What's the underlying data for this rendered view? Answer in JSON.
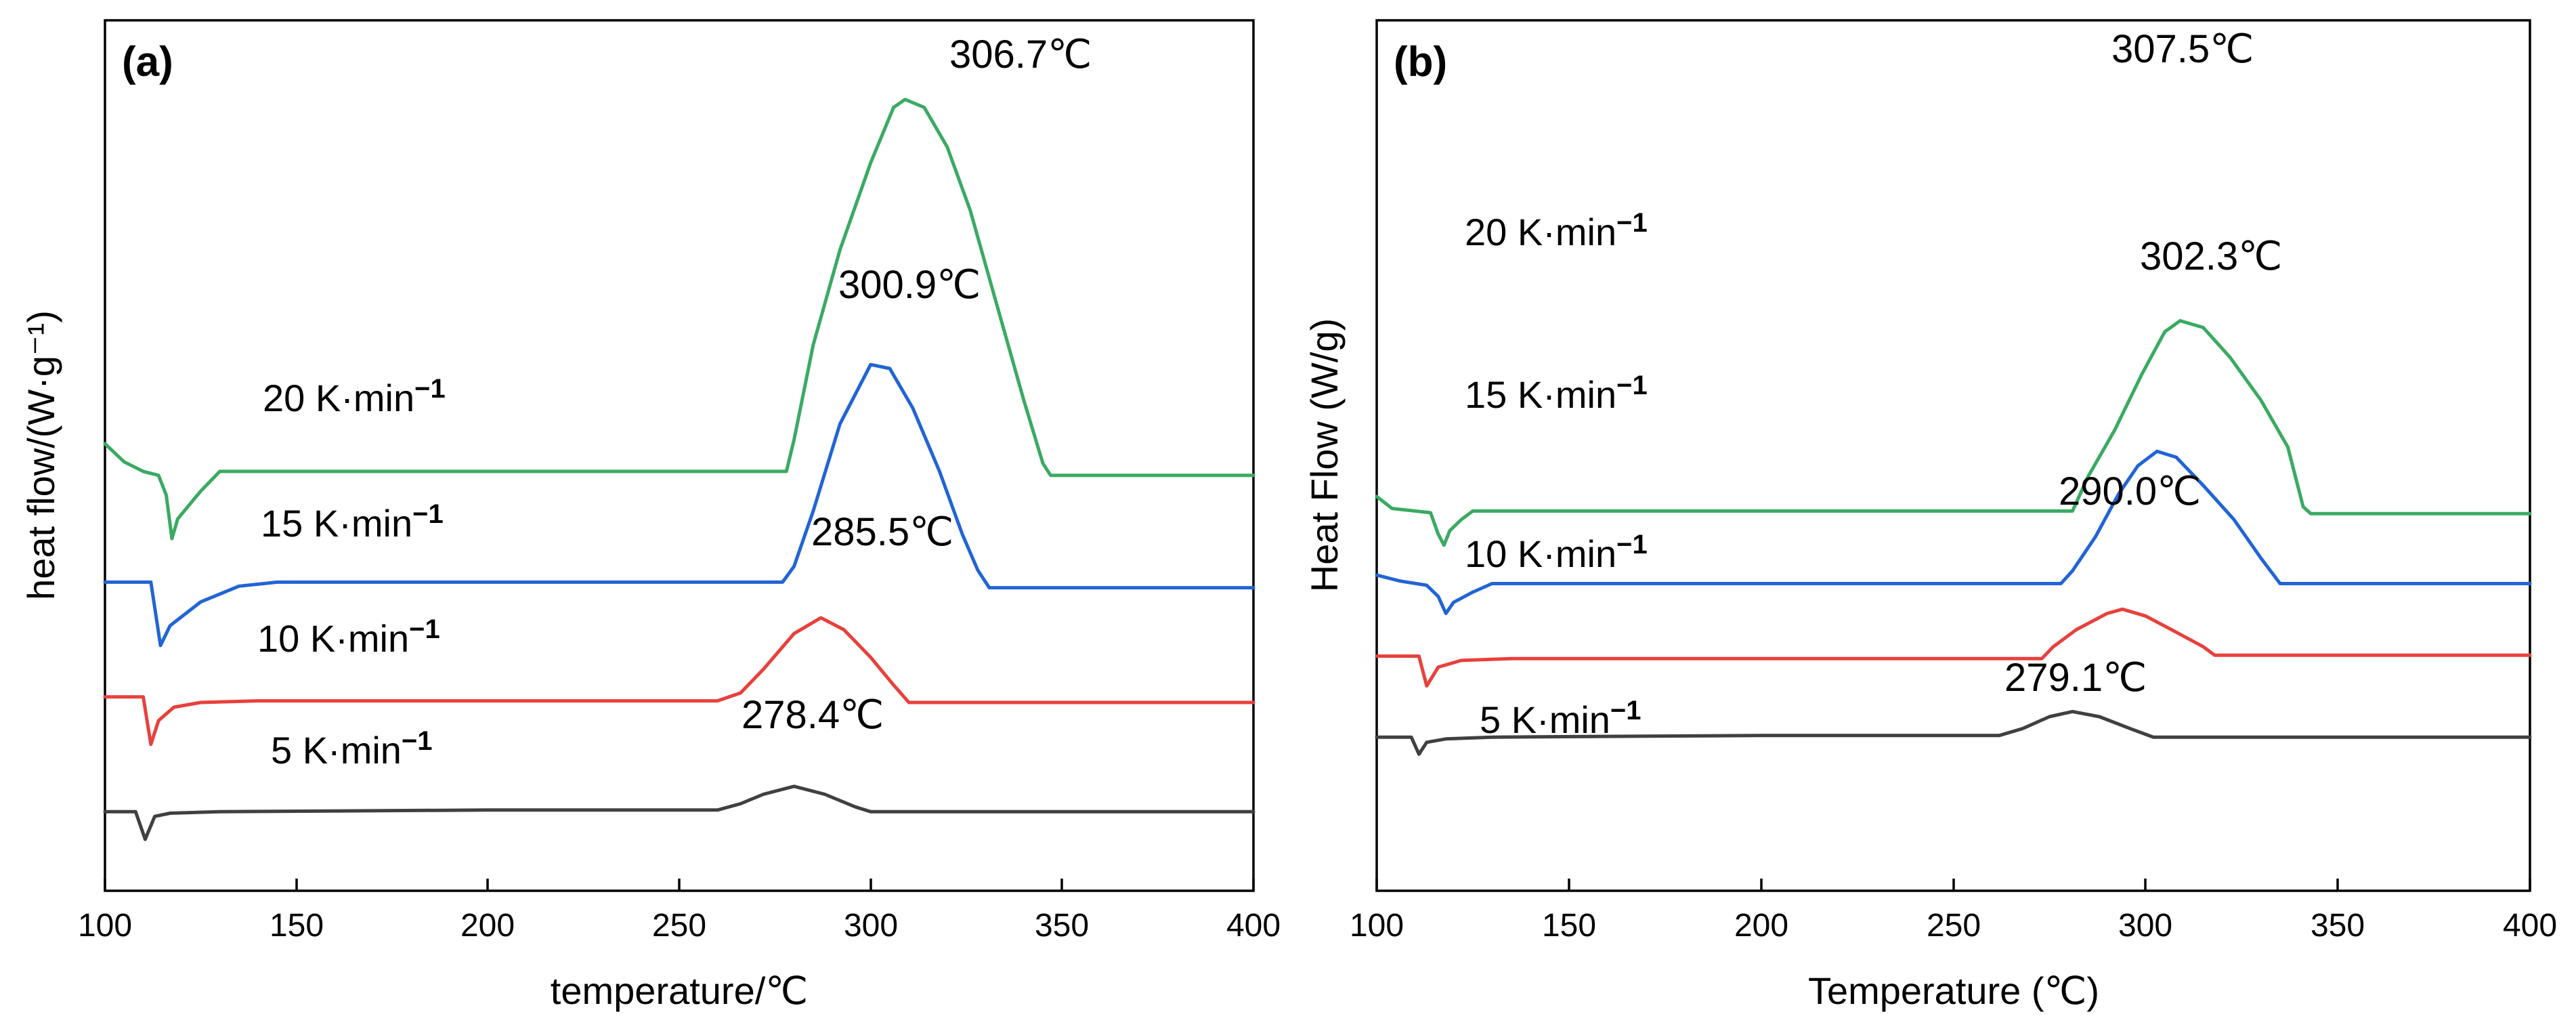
{
  "chart_data": [
    {
      "type": "line",
      "panel_label": "(a)",
      "xlabel": "temperature/℃",
      "ylabel": "heat flow/(W·g⁻¹)",
      "xlim": [
        100,
        400
      ],
      "x_ticks": [
        "100",
        "150",
        "200",
        "250",
        "300",
        "350",
        "400"
      ],
      "ylim": [
        -1,
        10
      ],
      "y_ticks": [],
      "series": [
        {
          "name": "5 K·min⁻¹",
          "name_base": "5 K·min",
          "name_exp": "−1",
          "color": "#404040",
          "peak_label": "278.4℃",
          "points": [
            [
              100,
              0
            ],
            [
              108,
              0
            ],
            [
              110.5,
              -0.35
            ],
            [
              113,
              -0.06
            ],
            [
              117,
              -0.02
            ],
            [
              130,
              0
            ],
            [
              200,
              0.02
            ],
            [
              260,
              0.02
            ],
            [
              266,
              0.1
            ],
            [
              272,
              0.22
            ],
            [
              280,
              0.32
            ],
            [
              288,
              0.22
            ],
            [
              296,
              0.06
            ],
            [
              300,
              0
            ],
            [
              400,
              0
            ]
          ]
        },
        {
          "name": "10 K·min⁻¹",
          "name_base": "10 K·min",
          "name_exp": "−1",
          "color": "#e8403c",
          "peak_label": "285.5℃",
          "points": [
            [
              100,
              1.45
            ],
            [
              110,
              1.45
            ],
            [
              112,
              0.85
            ],
            [
              114,
              1.15
            ],
            [
              118,
              1.32
            ],
            [
              125,
              1.38
            ],
            [
              140,
              1.4
            ],
            [
              200,
              1.4
            ],
            [
              260,
              1.4
            ],
            [
              266,
              1.5
            ],
            [
              272,
              1.8
            ],
            [
              280,
              2.25
            ],
            [
              287,
              2.45
            ],
            [
              293,
              2.3
            ],
            [
              300,
              1.95
            ],
            [
              306,
              1.6
            ],
            [
              310,
              1.38
            ],
            [
              400,
              1.38
            ]
          ]
        },
        {
          "name": "15 K·min⁻¹",
          "name_base": "15 K·min",
          "name_exp": "−1",
          "color": "#2264d6",
          "peak_label": "300.9℃",
          "points": [
            [
              100,
              2.9
            ],
            [
              112,
              2.9
            ],
            [
              114.5,
              2.1
            ],
            [
              117,
              2.35
            ],
            [
              125,
              2.65
            ],
            [
              135,
              2.85
            ],
            [
              145,
              2.9
            ],
            [
              200,
              2.9
            ],
            [
              260,
              2.9
            ],
            [
              277,
              2.9
            ],
            [
              280,
              3.1
            ],
            [
              285,
              3.8
            ],
            [
              292,
              4.9
            ],
            [
              300,
              5.65
            ],
            [
              305,
              5.6
            ],
            [
              311,
              5.1
            ],
            [
              318,
              4.3
            ],
            [
              324,
              3.5
            ],
            [
              328,
              3.05
            ],
            [
              331,
              2.83
            ],
            [
              400,
              2.83
            ]
          ]
        },
        {
          "name": "20 K·min⁻¹",
          "name_base": "20 K·min",
          "name_exp": "−1",
          "color": "#3aaa62",
          "peak_label": "306.7℃",
          "points": [
            [
              100,
              4.65
            ],
            [
              105,
              4.42
            ],
            [
              110,
              4.3
            ],
            [
              114,
              4.25
            ],
            [
              116,
              4.0
            ],
            [
              117.5,
              3.45
            ],
            [
              119,
              3.7
            ],
            [
              125,
              4.05
            ],
            [
              130,
              4.3
            ],
            [
              140,
              4.3
            ],
            [
              200,
              4.3
            ],
            [
              278,
              4.3
            ],
            [
              280,
              4.7
            ],
            [
              285,
              5.9
            ],
            [
              292,
              7.1
            ],
            [
              300,
              8.2
            ],
            [
              306,
              8.9
            ],
            [
              309,
              9.0
            ],
            [
              314,
              8.9
            ],
            [
              320,
              8.4
            ],
            [
              326,
              7.6
            ],
            [
              333,
              6.4
            ],
            [
              340,
              5.2
            ],
            [
              345,
              4.4
            ],
            [
              347,
              4.25
            ],
            [
              400,
              4.25
            ]
          ]
        }
      ]
    },
    {
      "type": "line",
      "panel_label": "(b)",
      "xlabel": "Temperature (℃)",
      "ylabel": "Heat Flow (W/g)",
      "xlim": [
        100,
        400
      ],
      "x_ticks": [
        "100",
        "150",
        "200",
        "250",
        "300",
        "350",
        "400"
      ],
      "ylim": [
        -1.8,
        8.4
      ],
      "y_ticks": [],
      "series": [
        {
          "name": "5 K·min⁻¹",
          "name_base": "5 K·min",
          "name_exp": "−1",
          "color": "#404040",
          "peak_label": "279.1℃",
          "points": [
            [
              100,
              0
            ],
            [
              109,
              0
            ],
            [
              111,
              -0.2
            ],
            [
              113,
              -0.06
            ],
            [
              118,
              -0.02
            ],
            [
              130,
              0
            ],
            [
              200,
              0.02
            ],
            [
              262,
              0.02
            ],
            [
              268,
              0.1
            ],
            [
              275,
              0.24
            ],
            [
              281,
              0.3
            ],
            [
              288,
              0.24
            ],
            [
              296,
              0.1
            ],
            [
              302,
              0
            ],
            [
              400,
              0
            ]
          ]
        },
        {
          "name": "10 K·min⁻¹",
          "name_base": "10 K·min",
          "name_exp": "−1",
          "color": "#e8403c",
          "peak_label": "290.0℃",
          "points": [
            [
              100,
              0.95
            ],
            [
              111,
              0.95
            ],
            [
              113,
              0.6
            ],
            [
              116,
              0.82
            ],
            [
              122,
              0.9
            ],
            [
              135,
              0.92
            ],
            [
              200,
              0.92
            ],
            [
              273,
              0.92
            ],
            [
              276,
              1.06
            ],
            [
              282,
              1.26
            ],
            [
              290,
              1.45
            ],
            [
              294,
              1.5
            ],
            [
              300,
              1.42
            ],
            [
              308,
              1.23
            ],
            [
              315,
              1.06
            ],
            [
              318,
              0.96
            ],
            [
              400,
              0.96
            ]
          ]
        },
        {
          "name": "15 K·min⁻¹",
          "name_base": "15 K·min",
          "name_exp": "−1",
          "color": "#2264d6",
          "peak_label": "302.3℃",
          "points": [
            [
              100,
              1.9
            ],
            [
              106,
              1.83
            ],
            [
              113,
              1.78
            ],
            [
              116,
              1.65
            ],
            [
              118,
              1.45
            ],
            [
              120,
              1.58
            ],
            [
              125,
              1.7
            ],
            [
              130,
              1.8
            ],
            [
              140,
              1.8
            ],
            [
              200,
              1.8
            ],
            [
              278,
              1.8
            ],
            [
              281,
              1.95
            ],
            [
              287,
              2.35
            ],
            [
              293,
              2.85
            ],
            [
              298,
              3.18
            ],
            [
              303,
              3.35
            ],
            [
              308,
              3.28
            ],
            [
              315,
              2.95
            ],
            [
              323,
              2.55
            ],
            [
              330,
              2.1
            ],
            [
              335,
              1.8
            ],
            [
              400,
              1.8
            ]
          ]
        },
        {
          "name": "20 K·min⁻¹",
          "name_base": "20 K·min",
          "name_exp": "−1",
          "color": "#3aaa62",
          "peak_label": "307.5℃",
          "points": [
            [
              100,
              2.82
            ],
            [
              104,
              2.68
            ],
            [
              110,
              2.65
            ],
            [
              114,
              2.63
            ],
            [
              116,
              2.38
            ],
            [
              117.5,
              2.25
            ],
            [
              119,
              2.42
            ],
            [
              122,
              2.55
            ],
            [
              125,
              2.65
            ],
            [
              140,
              2.65
            ],
            [
              200,
              2.65
            ],
            [
              281,
              2.65
            ],
            [
              285,
              3.05
            ],
            [
              292,
              3.6
            ],
            [
              299,
              4.25
            ],
            [
              305,
              4.75
            ],
            [
              309,
              4.88
            ],
            [
              315,
              4.8
            ],
            [
              322,
              4.45
            ],
            [
              330,
              3.95
            ],
            [
              337,
              3.4
            ],
            [
              341,
              2.7
            ],
            [
              343,
              2.62
            ],
            [
              400,
              2.62
            ]
          ]
        }
      ]
    }
  ]
}
